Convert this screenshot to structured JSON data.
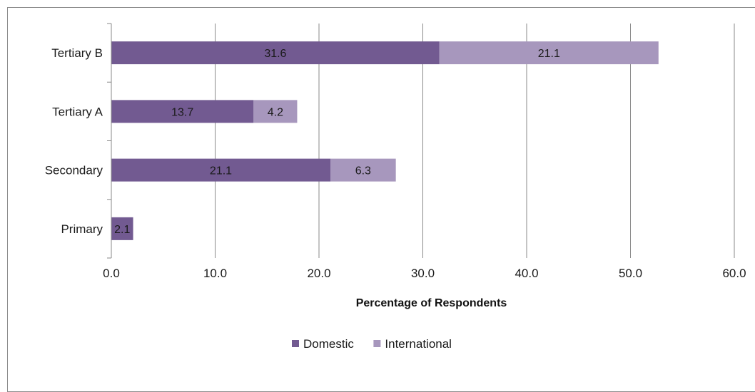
{
  "chart_data": {
    "type": "bar",
    "orientation": "horizontal",
    "stacked": true,
    "categories": [
      "Primary",
      "Secondary",
      "Tertiary A",
      "Tertiary B"
    ],
    "series": [
      {
        "name": "Domestic",
        "values": [
          2.1,
          21.1,
          13.7,
          31.6
        ],
        "color": "#725a91"
      },
      {
        "name": "International",
        "values": [
          null,
          6.3,
          4.2,
          21.1
        ],
        "color": "#a797bd"
      }
    ],
    "xlabel": "Percentage of Respondents",
    "ylabel": "",
    "xlim": [
      0,
      60
    ],
    "x_ticks": [
      "0.0",
      "10.0",
      "20.0",
      "30.0",
      "40.0",
      "50.0",
      "60.0"
    ],
    "grid": true,
    "legend_position": "bottom",
    "data_labels": true
  }
}
